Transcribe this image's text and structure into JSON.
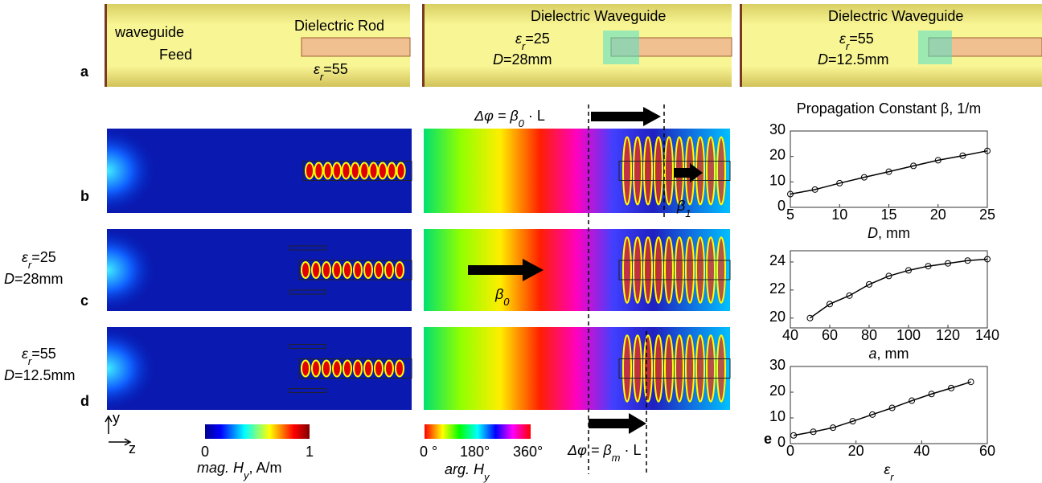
{
  "panel_labels": [
    "a",
    "b",
    "c",
    "d",
    "e"
  ],
  "row_a": {
    "feed": [
      "waveguide",
      "Feed"
    ],
    "rod": {
      "title": "Dielectric Rod",
      "eps": {
        "sym": "ε",
        "sub": "r",
        "tail": "=55"
      }
    },
    "wg1": {
      "title": "Dielectric Waveguide",
      "eps": {
        "sym": "ε",
        "sub": "r",
        "tail": "=25"
      },
      "d": {
        "sym": "D",
        "tail": "=28mm"
      }
    },
    "wg2": {
      "title": "Dielectric Waveguide",
      "eps": {
        "sym": "ε",
        "sub": "r",
        "tail": "=55"
      },
      "d": {
        "sym": "D",
        "tail": "=12.5mm"
      }
    }
  },
  "row_labels": {
    "c": {
      "eps": {
        "sym": "ε",
        "sub": "r",
        "tail": "=25"
      },
      "d": {
        "sym": "D",
        "tail": "=28mm"
      }
    },
    "d": {
      "eps": {
        "sym": "ε",
        "sub": "r",
        "tail": "=55"
      },
      "d": {
        "sym": "D",
        "tail": "=12.5mm"
      }
    }
  },
  "annotations": {
    "top": {
      "sym": "Δφ = β",
      "sub": "0",
      "tail": " · L"
    },
    "bottom": {
      "sym": "Δφ = β",
      "sub": "m",
      "tail": " · L"
    },
    "beta1": {
      "sym": "β",
      "sub": "1"
    },
    "beta0": {
      "sym": "β",
      "sub": "0"
    }
  },
  "colorbars": {
    "mag": {
      "ticks": [
        "0",
        "1"
      ],
      "label": {
        "sym": "mag. H",
        "sub": "y",
        "tail": ", A/m"
      }
    },
    "arg": {
      "ticks": [
        "0 °",
        "180°",
        "360°"
      ],
      "label": {
        "sym": "arg. H",
        "sub": "y"
      }
    }
  },
  "axes_icon": [
    "y",
    "z"
  ],
  "chart_data": [
    {
      "type": "line",
      "title": "Propagation Constant β, 1/m",
      "xlabel": {
        "sym": "D",
        "tail": ", mm"
      },
      "x": [
        5,
        7.5,
        10,
        12.5,
        15,
        17.5,
        20,
        22.5,
        25
      ],
      "values": [
        5.2,
        7,
        9.5,
        11.8,
        14,
        16.3,
        18.5,
        20.3,
        22.2
      ],
      "xlim": [
        5,
        25
      ],
      "xticks": [
        5,
        10,
        15,
        20,
        25
      ],
      "ylim": [
        0,
        30
      ],
      "yticks": [
        0,
        10,
        20,
        30
      ],
      "color": "#000000",
      "grid": false
    },
    {
      "type": "line",
      "xlabel": {
        "sym": "a",
        "tail": ", mm"
      },
      "x": [
        50,
        60,
        70,
        80,
        90,
        100,
        110,
        120,
        130,
        140
      ],
      "values": [
        20,
        21,
        21.6,
        22.4,
        23,
        23.4,
        23.7,
        23.9,
        24.1,
        24.2
      ],
      "xlim": [
        40,
        140
      ],
      "xticks": [
        40,
        60,
        80,
        100,
        120,
        140
      ],
      "ylim": [
        19.3,
        24.8
      ],
      "yticks": [
        20,
        22,
        24
      ],
      "color": "#000000",
      "grid": false
    },
    {
      "type": "line",
      "xlabel": {
        "sym": "ε",
        "sub": "r"
      },
      "x": [
        1,
        7,
        13,
        19,
        25,
        31,
        37,
        43,
        49,
        55
      ],
      "values": [
        3.2,
        4.6,
        6.2,
        8.7,
        11.3,
        13.9,
        16.7,
        19.3,
        21.6,
        24
      ],
      "xlim": [
        0,
        60
      ],
      "xticks": [
        0,
        20,
        40,
        60
      ],
      "ylim": [
        0,
        30
      ],
      "yticks": [
        0,
        10,
        20,
        30
      ],
      "color": "#000000",
      "grid": false
    }
  ]
}
